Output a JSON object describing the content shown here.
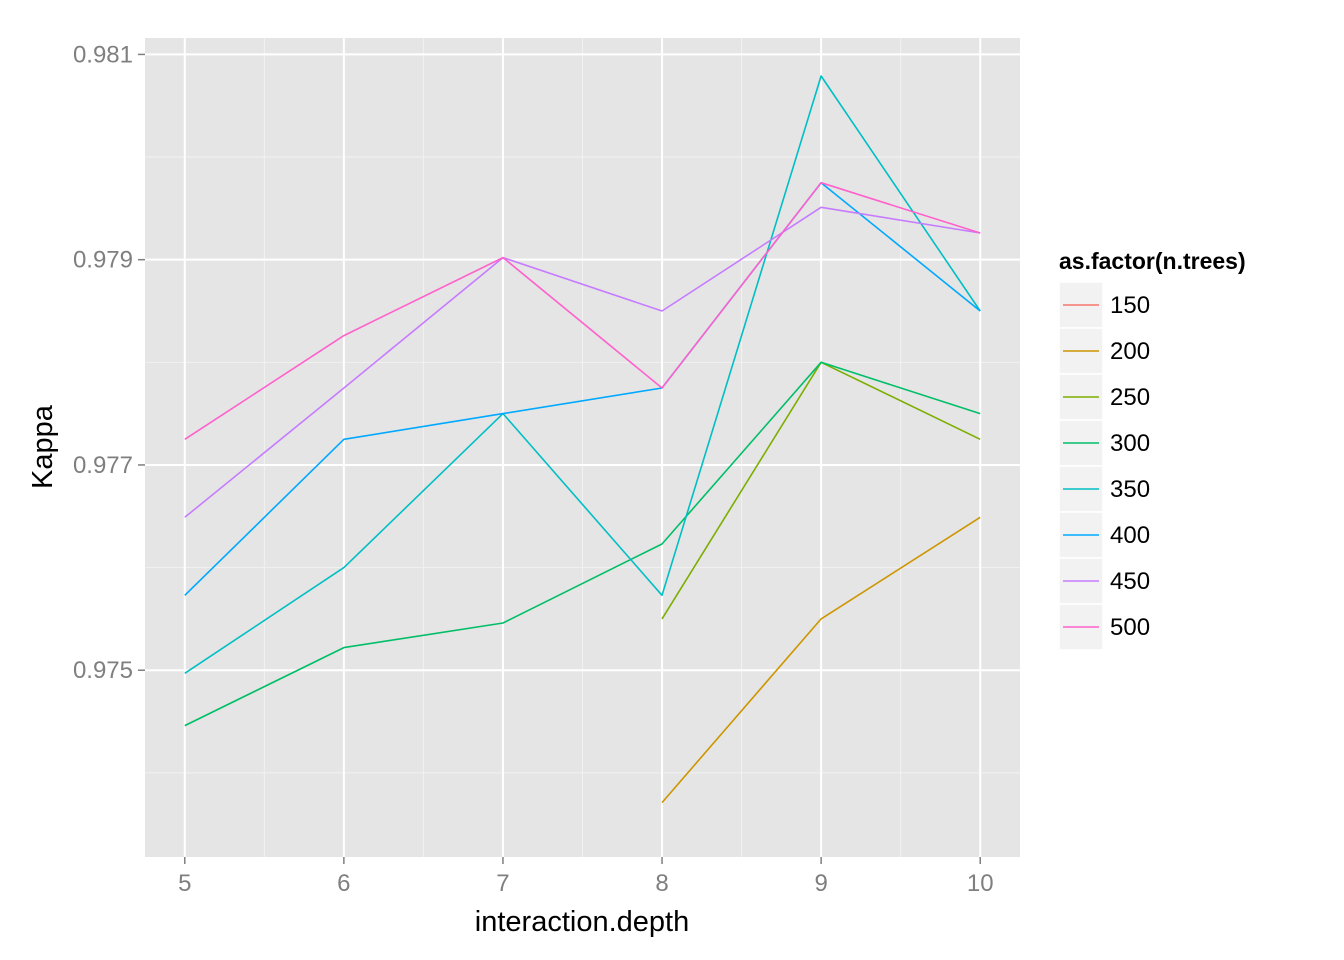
{
  "chart_data": {
    "type": "line",
    "xlabel": "interaction.depth",
    "ylabel": "Kappa",
    "x": [
      5,
      6,
      7,
      8,
      9,
      10
    ],
    "x_ticks": [
      5,
      6,
      7,
      8,
      9,
      10
    ],
    "y_ticks": [
      0.975,
      0.977,
      0.979,
      0.981
    ],
    "y_tick_labels": [
      "0.975",
      "0.977",
      "0.979",
      "0.981"
    ],
    "xlim": [
      4.75,
      10.25
    ],
    "ylim": [
      0.97318,
      0.98116
    ],
    "grid": true,
    "legend": {
      "title": "as.factor(n.trees)",
      "placement": "right"
    },
    "series": [
      {
        "name": "150",
        "color": "#F8766D",
        "values": [
          null,
          null,
          null,
          null,
          null,
          null
        ]
      },
      {
        "name": "200",
        "color": "#CD9600",
        "values": [
          null,
          null,
          null,
          0.97371,
          0.9755,
          0.97649
        ]
      },
      {
        "name": "250",
        "color": "#7CAE00",
        "values": [
          null,
          null,
          null,
          0.9755,
          0.978,
          0.97725
        ]
      },
      {
        "name": "300",
        "color": "#00BE67",
        "values": [
          0.97446,
          0.97522,
          0.97546,
          0.97623,
          0.978,
          0.9775
        ]
      },
      {
        "name": "350",
        "color": "#00BFC4",
        "values": [
          0.97497,
          0.976,
          0.9775,
          0.97573,
          0.98079,
          0.9785
        ]
      },
      {
        "name": "400",
        "color": "#00A9FF",
        "values": [
          0.97573,
          0.97725,
          0.9775,
          0.97775,
          0.97975,
          0.9785
        ]
      },
      {
        "name": "450",
        "color": "#C77CFF",
        "values": [
          0.97649,
          0.97775,
          0.97902,
          0.9785,
          0.97951,
          0.97926
        ]
      },
      {
        "name": "500",
        "color": "#FF61CC",
        "values": [
          0.97725,
          0.97826,
          0.97902,
          0.97775,
          0.97975,
          0.97926
        ]
      }
    ]
  }
}
